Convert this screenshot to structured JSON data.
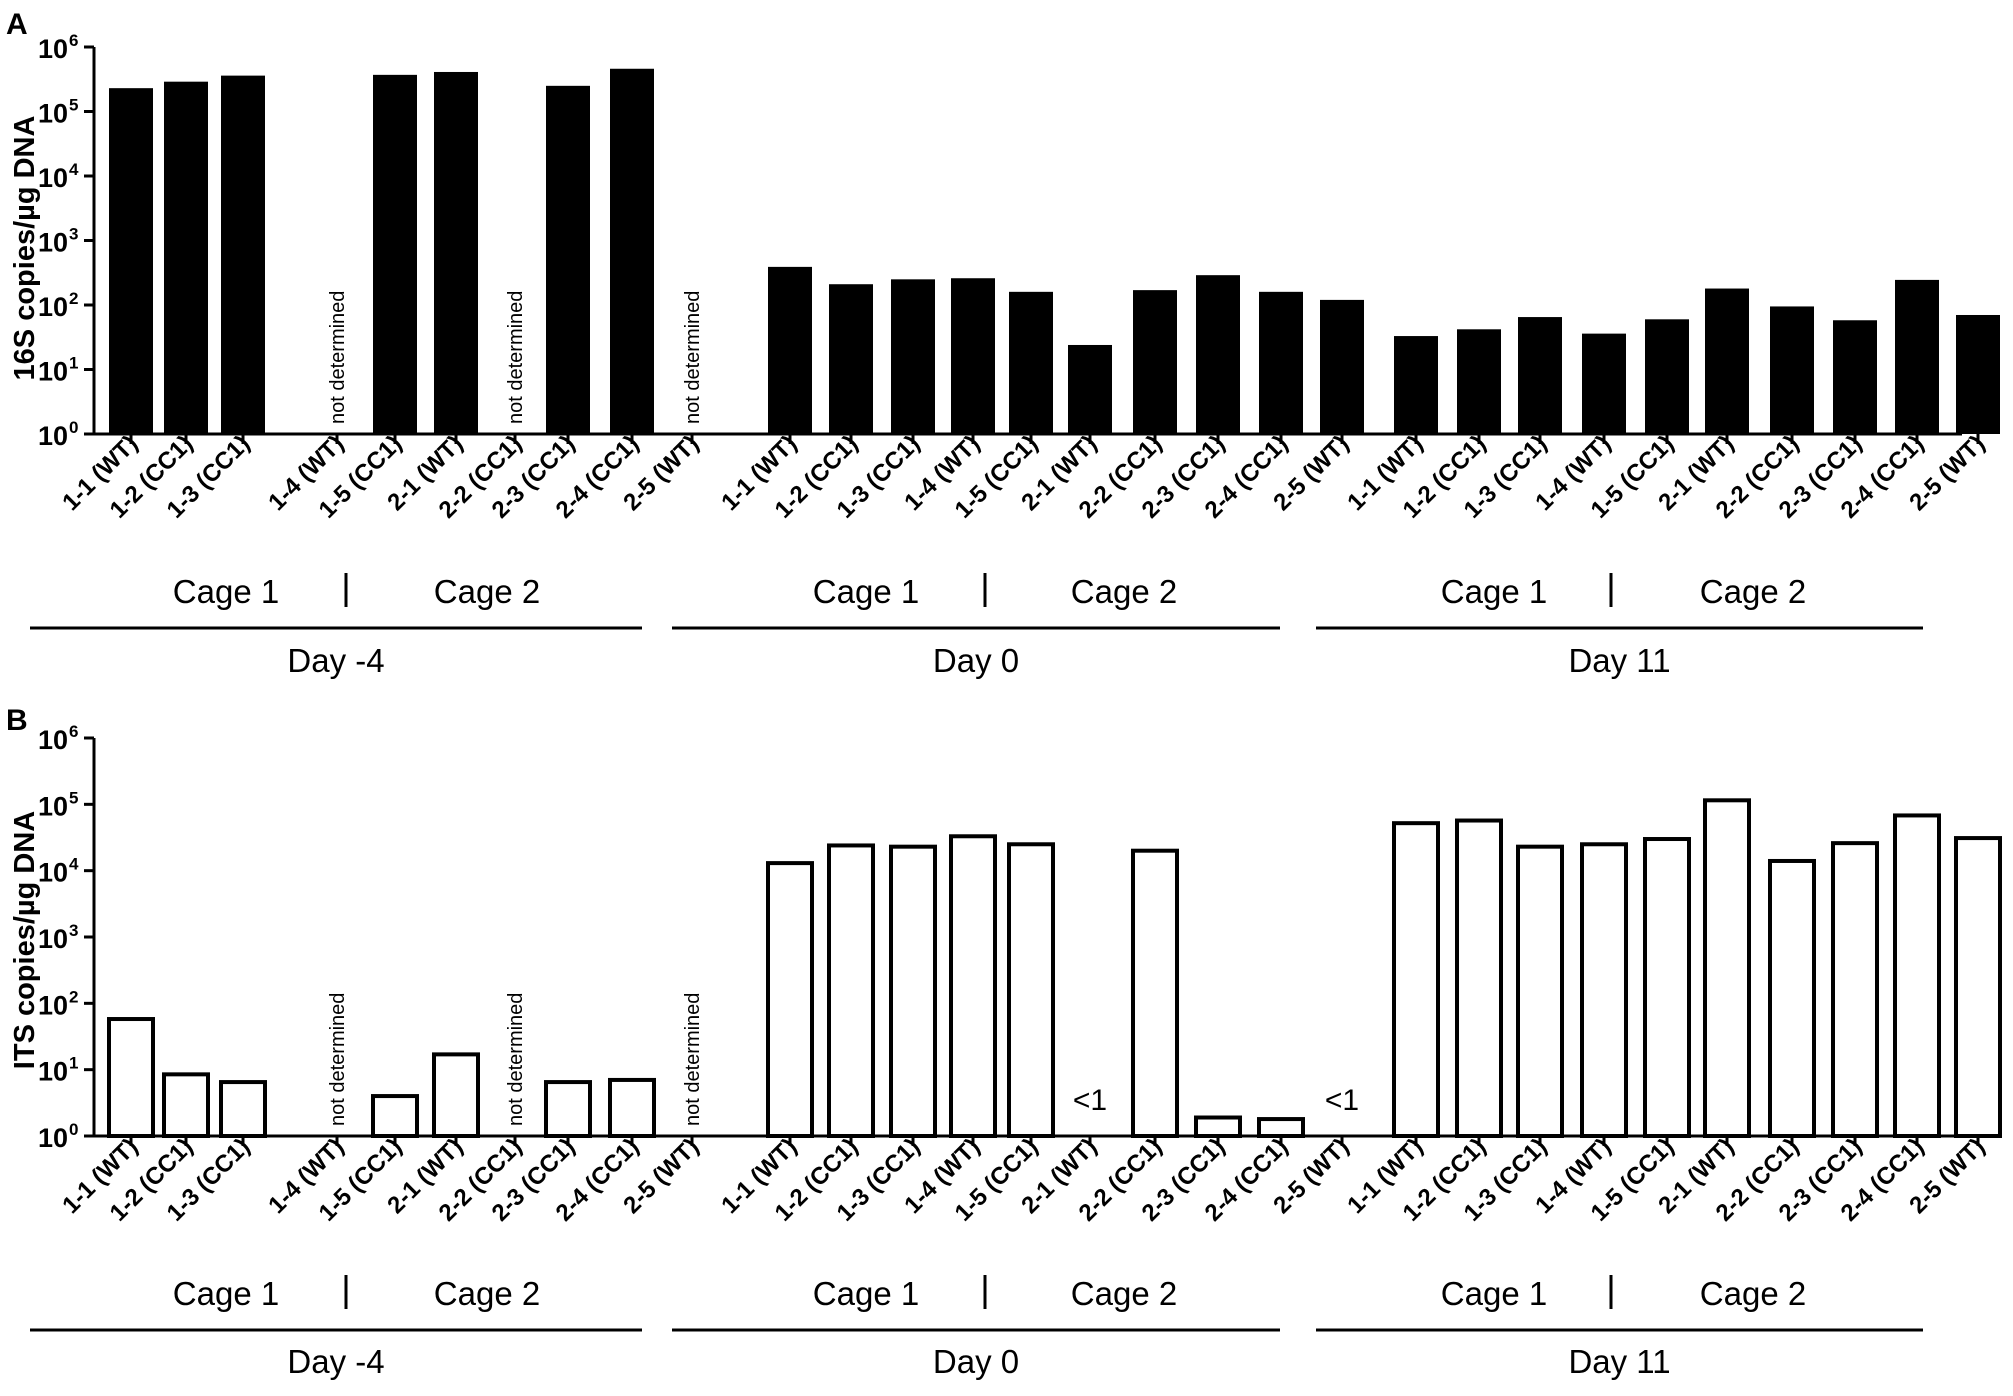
{
  "colors": {
    "axis": "#000000",
    "barA": "#000000",
    "barB": "#ffffff",
    "barStroke": "#000000"
  },
  "chart_data": [
    {
      "panel": "A",
      "type": "bar",
      "yscale": "log",
      "ylabel": "16S copies/µg DNA",
      "ylim": [
        1,
        1000000
      ],
      "yticks": [
        {
          "base": "10",
          "exp": "0"
        },
        {
          "base": "10",
          "exp": "1"
        },
        {
          "base": "10",
          "exp": "2"
        },
        {
          "base": "10",
          "exp": "3"
        },
        {
          "base": "10",
          "exp": "4"
        },
        {
          "base": "10",
          "exp": "5"
        },
        {
          "base": "10",
          "exp": "6"
        }
      ],
      "bar_fill": "black",
      "groups": [
        {
          "label": "Day -4",
          "cages": [
            "Cage 1",
            "Cage 2"
          ],
          "categories": [
            "1-1 (WT)",
            "1-2 (CC1)",
            "1-3 (CC1)",
            "1-4 (WT)",
            "1-5 (CC1)",
            "2-1 (WT)",
            "2-2 (CC1)",
            "2-3 (CC1)",
            "2-4 (CC1)",
            "2-5 (WT)"
          ],
          "values": [
            230000,
            290000,
            360000,
            null,
            370000,
            410000,
            null,
            250000,
            460000,
            null
          ],
          "annotations": [
            "",
            "",
            "",
            "not determined",
            "",
            "",
            "not determined",
            "",
            "",
            "not determined"
          ]
        },
        {
          "label": "Day 0",
          "cages": [
            "Cage 1",
            "Cage 2"
          ],
          "categories": [
            "1-1 (WT)",
            "1-2 (CC1)",
            "1-3 (CC1)",
            "1-4 (WT)",
            "1-5 (CC1)",
            "2-1 (WT)",
            "2-2 (CC1)",
            "2-3 (CC1)",
            "2-4 (CC1)",
            "2-5 (WT)"
          ],
          "values": [
            390,
            210,
            250,
            260,
            160,
            24,
            170,
            290,
            160,
            120
          ],
          "annotations": [
            "",
            "",
            "",
            "",
            "",
            "",
            "",
            "",
            "",
            ""
          ]
        },
        {
          "label": "Day 11",
          "cages": [
            "Cage 1",
            "Cage 2"
          ],
          "categories": [
            "1-1 (WT)",
            "1-2 (CC1)",
            "1-3 (CC1)",
            "1-4 (WT)",
            "1-5 (CC1)",
            "2-1 (WT)",
            "2-2 (CC1)",
            "2-3 (CC1)",
            "2-4 (CC1)",
            "2-5 (WT)"
          ],
          "values": [
            33,
            42,
            65,
            36,
            60,
            180,
            95,
            58,
            245,
            70
          ],
          "annotations": [
            "",
            "",
            "",
            "",
            "",
            "",
            "",
            "",
            "",
            ""
          ]
        }
      ]
    },
    {
      "panel": "B",
      "type": "bar",
      "yscale": "log",
      "ylabel": "ITS copies/µg DNA",
      "ylim": [
        1,
        1000000
      ],
      "yticks": [
        {
          "base": "10",
          "exp": "0"
        },
        {
          "base": "10",
          "exp": "1"
        },
        {
          "base": "10",
          "exp": "2"
        },
        {
          "base": "10",
          "exp": "3"
        },
        {
          "base": "10",
          "exp": "4"
        },
        {
          "base": "10",
          "exp": "5"
        },
        {
          "base": "10",
          "exp": "6"
        }
      ],
      "bar_fill": "white",
      "groups": [
        {
          "label": "Day -4",
          "cages": [
            "Cage 1",
            "Cage 2"
          ],
          "categories": [
            "1-1 (WT)",
            "1-2 (CC1)",
            "1-3 (CC1)",
            "1-4 (WT)",
            "1-5 (CC1)",
            "2-1 (WT)",
            "2-2 (CC1)",
            "2-3 (CC1)",
            "2-4 (CC1)",
            "2-5 (WT)"
          ],
          "values": [
            58,
            8.5,
            6.5,
            null,
            4,
            17,
            null,
            6.5,
            7,
            null
          ],
          "annotations": [
            "",
            "",
            "",
            "not determined",
            "",
            "",
            "not determined",
            "",
            "",
            "not determined"
          ]
        },
        {
          "label": "Day 0",
          "cages": [
            "Cage 1",
            "Cage 2"
          ],
          "categories": [
            "1-1 (WT)",
            "1-2 (CC1)",
            "1-3 (CC1)",
            "1-4 (WT)",
            "1-5 (CC1)",
            "2-1 (WT)",
            "2-2 (CC1)",
            "2-3 (CC1)",
            "2-4 (CC1)",
            "2-5 (WT)"
          ],
          "values": [
            13000,
            24000,
            23000,
            33000,
            25000,
            null,
            20000,
            1.9,
            1.8,
            null
          ],
          "annotations": [
            "",
            "",
            "",
            "",
            "",
            "<1",
            "",
            "",
            "",
            "<1"
          ]
        },
        {
          "label": "Day 11",
          "cages": [
            "Cage 1",
            "Cage 2"
          ],
          "categories": [
            "1-1 (WT)",
            "1-2 (CC1)",
            "1-3 (CC1)",
            "1-4 (WT)",
            "1-5 (CC1)",
            "2-1 (WT)",
            "2-2 (CC1)",
            "2-3 (CC1)",
            "2-4 (CC1)",
            "2-5 (WT)"
          ],
          "values": [
            52000,
            57000,
            23000,
            25000,
            30000,
            115000,
            14000,
            26000,
            68000,
            31000
          ],
          "annotations": [
            "",
            "",
            "",
            "",
            "",
            "",
            "",
            "",
            "",
            ""
          ]
        }
      ]
    }
  ]
}
